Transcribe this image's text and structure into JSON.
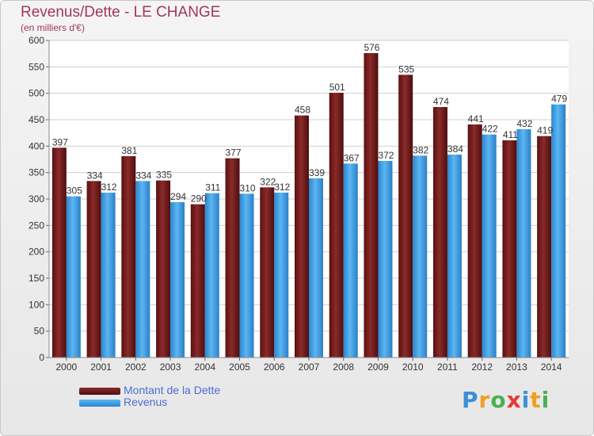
{
  "header": {
    "title": "Revenus/Dette - LE CHANGE",
    "subtitle": "(en milliers d'€)"
  },
  "legend": {
    "items": [
      {
        "label": "Montant de la Dette",
        "color": "#6b1717"
      },
      {
        "label": "Revenus",
        "color": "#3a9ee6"
      }
    ]
  },
  "logo": {
    "text": "Proxiti",
    "letter_colors": [
      "#3a8fd8",
      "#f0a020",
      "#4caf50",
      "#e53935",
      "#3a8fd8",
      "#f0a020",
      "#4caf50"
    ]
  },
  "colors": {
    "debt": "#6b1717",
    "debt_light": "#8c2b2b",
    "revenue": "#3a9ee6",
    "revenue_light": "#5cb3f0",
    "title": "#a23560",
    "grid": "#d0d0d0",
    "axis_text": "#333333"
  },
  "chart_data": {
    "type": "bar",
    "title": "Revenus/Dette - LE CHANGE",
    "ylabel": "(en milliers d'€)",
    "xlabel": "",
    "categories": [
      "2000",
      "2001",
      "2002",
      "2003",
      "2004",
      "2005",
      "2006",
      "2007",
      "2008",
      "2009",
      "2010",
      "2011",
      "2012",
      "2013",
      "2014"
    ],
    "series": [
      {
        "name": "Montant de la Dette",
        "values": [
          397,
          334,
          381,
          335,
          290,
          377,
          322,
          458,
          501,
          576,
          535,
          474,
          441,
          411,
          419
        ]
      },
      {
        "name": "Revenus",
        "values": [
          305,
          312,
          334,
          294,
          311,
          310,
          312,
          339,
          367,
          372,
          382,
          384,
          422,
          432,
          479
        ]
      }
    ],
    "ylim": [
      0,
      600
    ],
    "yticks": [
      0,
      50,
      100,
      150,
      200,
      250,
      300,
      350,
      400,
      450,
      500,
      550,
      600
    ],
    "grid": true,
    "legend_position": "bottom-left"
  }
}
